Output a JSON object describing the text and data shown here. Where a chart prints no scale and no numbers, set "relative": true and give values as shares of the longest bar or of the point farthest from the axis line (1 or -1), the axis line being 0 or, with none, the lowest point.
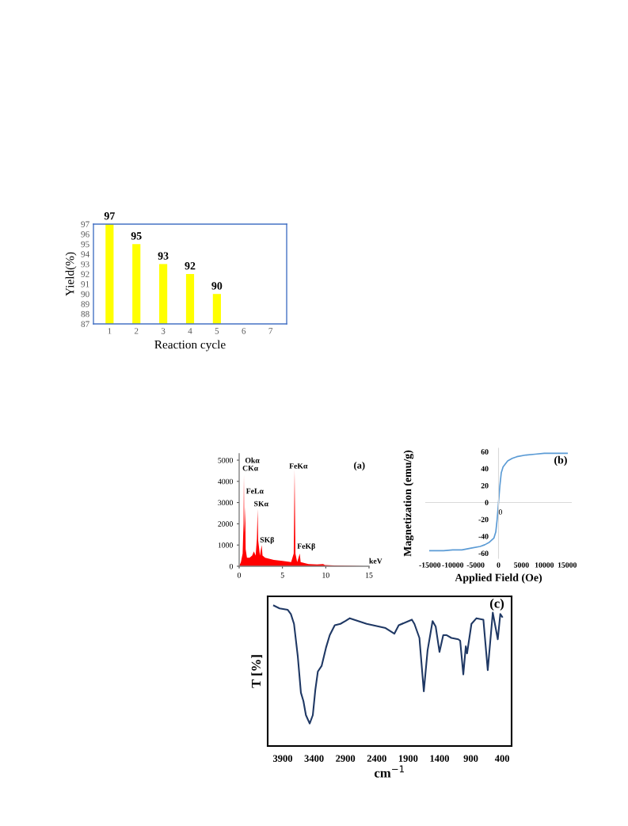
{
  "chart_data": [
    {
      "type": "bar",
      "xlabel": "Reaction cycle",
      "ylabel": "Yield(%)",
      "categories": [
        "1",
        "2",
        "3",
        "4",
        "5",
        "6",
        "7"
      ],
      "series": [
        {
          "color": "#ffff00",
          "values": [
            97,
            95,
            93,
            92,
            90,
            null,
            null
          ]
        }
      ],
      "ylim": [
        87,
        97
      ],
      "yticks": [
        87,
        88,
        89,
        90,
        91,
        92,
        93,
        94,
        95,
        96,
        97
      ],
      "data_labels": true,
      "grid": false,
      "legend": false
    },
    {
      "type": "area",
      "xlabel": "keV",
      "annotations": [
        "(a)",
        "Okα",
        "CKα",
        {
          "text": "FeLα",
          "x": 0.8,
          "y": 3350
        },
        {
          "text": "SKα",
          "x": 1.7,
          "y": 2750
        },
        {
          "text": "SKβ",
          "x": 2.4,
          "y": 1050
        },
        "FeKα",
        {
          "text": "FeKβ",
          "x": 6.7,
          "y": 750
        }
      ],
      "series": [
        {
          "color": "#ff0000",
          "x": [
            0,
            0.2,
            0.4,
            0.5,
            0.55,
            0.6,
            0.7,
            0.75,
            0.9,
            1.2,
            1.5,
            1.7,
            1.9,
            2.05,
            2.13,
            2.2,
            2.4,
            2.6,
            2.7,
            3,
            4,
            5,
            6,
            6.3,
            6.4,
            6.5,
            6.7,
            7.0,
            7.1,
            8,
            9,
            9.7,
            9.9,
            11,
            13,
            14.5
          ],
          "values": [
            0,
            200,
            600,
            2000,
            4300,
            1500,
            2800,
            800,
            400,
            400,
            500,
            700,
            500,
            1300,
            2700,
            1200,
            500,
            1000,
            500,
            400,
            300,
            250,
            200,
            600,
            4550,
            600,
            200,
            600,
            200,
            100,
            80,
            100,
            60,
            40,
            20,
            0
          ]
        }
      ],
      "xlim": [
        0,
        15
      ],
      "xticks": [
        0,
        5,
        10,
        15
      ],
      "ylim": [
        0,
        5300
      ],
      "yticks": [
        0,
        1000,
        2000,
        3000,
        4000,
        5000
      ],
      "grid": false,
      "legend": false
    },
    {
      "type": "line",
      "xlabel": "Applied Field (Oe)",
      "ylabel": "Magnetization (emu/g)",
      "annotations": [
        "(b)",
        {
          "text": "0",
          "x": 0,
          "y": -8
        }
      ],
      "series": [
        {
          "color": "#5b9bd5",
          "x": [
            -15000,
            -12000,
            -10000,
            -8000,
            -6000,
            -4000,
            -3000,
            -2000,
            -1000,
            -600,
            -300,
            0,
            300,
            600,
            1000,
            2000,
            3000,
            4000,
            6000,
            8000,
            10000,
            12000,
            15000
          ],
          "values": [
            -57,
            -57,
            -56,
            -56,
            -54,
            -52,
            -50,
            -47,
            -42,
            -35,
            -20,
            0,
            20,
            35,
            42,
            49,
            52,
            54,
            56,
            57,
            58,
            58,
            58
          ]
        }
      ],
      "xlim": [
        -16000,
        16000
      ],
      "xticks": [
        -15000,
        -10000,
        -5000,
        0,
        5000,
        10000,
        15000
      ],
      "ylim": [
        -66,
        64
      ],
      "yticks": [
        -60,
        -40,
        -20,
        0,
        20,
        40,
        60
      ],
      "ref_lines": [
        {
          "axis": "y",
          "value": 0,
          "color": "#d9d9d9"
        }
      ],
      "grid": false,
      "legend": false
    },
    {
      "type": "line",
      "xlabel": "cm$^{−1}$",
      "ylabel": "T [%]",
      "annotations": [
        "(c)"
      ],
      "relative": true,
      "tick_labels": "x",
      "series": [
        {
          "color": "#1f3864",
          "x": [
            4040,
            3950,
            3820,
            3770,
            3720,
            3660,
            3610,
            3570,
            3530,
            3470,
            3420,
            3380,
            3340,
            3280,
            3210,
            3150,
            3070,
            2980,
            2900,
            2830,
            2560,
            2260,
            2120,
            2050,
            1840,
            1800,
            1720,
            1650,
            1590,
            1510,
            1460,
            1400,
            1340,
            1290,
            1210,
            1100,
            1070,
            1020,
            980,
            960,
            890,
            810,
            700,
            630,
            550,
            470,
            430,
            400
          ],
          "values": [
            1.0,
            0.98,
            0.97,
            0.94,
            0.87,
            0.64,
            0.38,
            0.32,
            0.22,
            0.16,
            0.22,
            0.4,
            0.53,
            0.57,
            0.7,
            0.79,
            0.86,
            0.87,
            0.89,
            0.91,
            0.87,
            0.84,
            0.8,
            0.86,
            0.9,
            0.87,
            0.77,
            0.39,
            0.68,
            0.89,
            0.85,
            0.67,
            0.79,
            0.79,
            0.77,
            0.76,
            0.75,
            0.51,
            0.71,
            0.66,
            0.87,
            0.91,
            0.9,
            0.54,
            0.95,
            0.76,
            0.94,
            0.92
          ]
        }
      ],
      "xlim": [
        4140,
        250
      ],
      "xticks": [
        3900,
        3400,
        2900,
        2400,
        1900,
        1400,
        900,
        400
      ],
      "grid": false,
      "legend": false
    }
  ]
}
